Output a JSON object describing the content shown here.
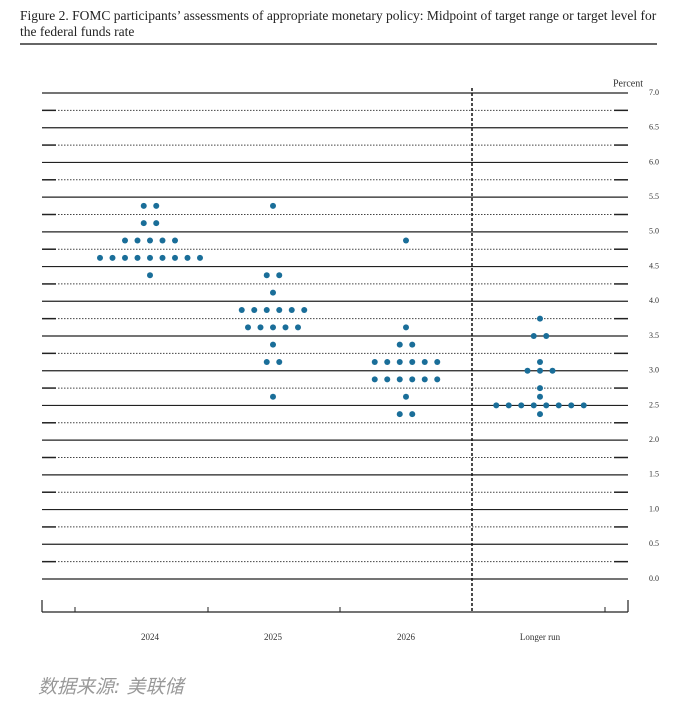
{
  "chart_data": {
    "type": "dot",
    "title": "Figure 2.  FOMC participants’ assessments of appropriate monetary policy:  Midpoint of target range or target level for the federal funds rate",
    "y_label": "Percent",
    "note": "数据来源: 美联储",
    "categories": [
      "2024",
      "2025",
      "2026",
      "Longer run"
    ],
    "color": "#1a6e99",
    "dots": [
      [
        {
          "value": 5.375,
          "count": 2
        },
        {
          "value": 5.125,
          "count": 2
        },
        {
          "value": 4.875,
          "count": 5
        },
        {
          "value": 4.625,
          "count": 9
        },
        {
          "value": 4.375,
          "count": 1
        }
      ],
      [
        {
          "value": 5.375,
          "count": 1
        },
        {
          "value": 4.375,
          "count": 2
        },
        {
          "value": 4.125,
          "count": 1
        },
        {
          "value": 3.875,
          "count": 6
        },
        {
          "value": 3.625,
          "count": 5
        },
        {
          "value": 3.375,
          "count": 1
        },
        {
          "value": 3.125,
          "count": 2
        },
        {
          "value": 2.625,
          "count": 1
        }
      ],
      [
        {
          "value": 4.875,
          "count": 1
        },
        {
          "value": 3.625,
          "count": 1
        },
        {
          "value": 3.375,
          "count": 2
        },
        {
          "value": 3.125,
          "count": 6
        },
        {
          "value": 2.875,
          "count": 6
        },
        {
          "value": 2.625,
          "count": 1
        },
        {
          "value": 2.375,
          "count": 2
        }
      ],
      [
        {
          "value": 3.75,
          "count": 1
        },
        {
          "value": 3.5,
          "count": 2
        },
        {
          "value": 3.125,
          "count": 1
        },
        {
          "value": 3.0,
          "count": 3
        },
        {
          "value": 2.75,
          "count": 1
        },
        {
          "value": 2.625,
          "count": 1
        },
        {
          "value": 2.5,
          "count": 8
        },
        {
          "value": 2.375,
          "count": 1
        }
      ]
    ],
    "ylim": [
      0,
      7
    ],
    "yticks": [
      {
        "value": 0,
        "label": "0.0"
      },
      0.5,
      {
        "value": 1,
        "label": "1.0"
      },
      1.5,
      {
        "value": 2,
        "label": "2.0"
      },
      2.5,
      {
        "value": 3,
        "label": "3.0"
      },
      3.5,
      {
        "value": 4,
        "label": "4.0"
      },
      4.5,
      {
        "value": 5,
        "label": "5.0"
      },
      5.5,
      {
        "value": 6,
        "label": "6.0"
      },
      6.5,
      {
        "value": 7,
        "label": "7.0"
      }
    ],
    "minor_yticks": [
      0.25,
      0.75,
      1.25,
      1.75,
      2.25,
      2.75,
      3.25,
      3.75,
      4.25,
      4.75,
      5.25,
      5.75,
      6.25,
      6.75
    ]
  }
}
